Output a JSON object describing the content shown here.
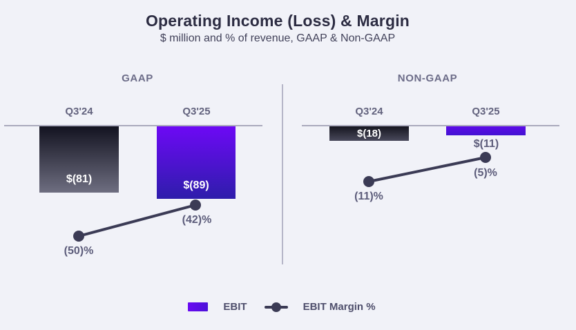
{
  "page": {
    "background": "#f1f2f8"
  },
  "chart_data": {
    "type": "bar",
    "title": "Operating Income (Loss) & Margin",
    "subtitle": "$ million and % of revenue, GAAP & Non-GAAP",
    "panels": [
      {
        "name": "GAAP",
        "categories": [
          "Q3'24",
          "Q3'25"
        ],
        "series": [
          {
            "name": "EBIT",
            "type": "bar",
            "values": [
              -81,
              -89
            ],
            "labels": [
              "$(81)",
              "$(89)"
            ]
          },
          {
            "name": "EBIT Margin %",
            "type": "line",
            "values": [
              -50,
              -42
            ],
            "labels": [
              "(50)%",
              "(42)%"
            ]
          }
        ]
      },
      {
        "name": "NON-GAAP",
        "categories": [
          "Q3'24",
          "Q3'25"
        ],
        "series": [
          {
            "name": "EBIT",
            "type": "bar",
            "values": [
              -18,
              -11
            ],
            "labels": [
              "$(18)",
              "$(11)"
            ]
          },
          {
            "name": "EBIT Margin %",
            "type": "line",
            "values": [
              -11,
              -5
            ],
            "labels": [
              "(11)%",
              "(5)%"
            ]
          }
        ]
      }
    ],
    "legend": [
      {
        "label": "EBIT",
        "swatch": "bar"
      },
      {
        "label": "EBIT Margin %",
        "swatch": "line-dot"
      }
    ],
    "colors": {
      "background": "#f1f2f8",
      "bar_prior_top": "#131320",
      "bar_prior_bottom": "#6e6e80",
      "bar_current_top": "#6d09f5",
      "bar_current_bottom": "#2e1dab",
      "margin_line": "#3b3b55",
      "axis_line": "#a9a9bc",
      "title_text": "#2c2c42",
      "muted_text": "#5c5c7a"
    },
    "layout_hints": {
      "bars_extend_below_zero_line": true,
      "legend_position": "bottom-center",
      "grid": false,
      "value_axis_hidden": true
    }
  }
}
